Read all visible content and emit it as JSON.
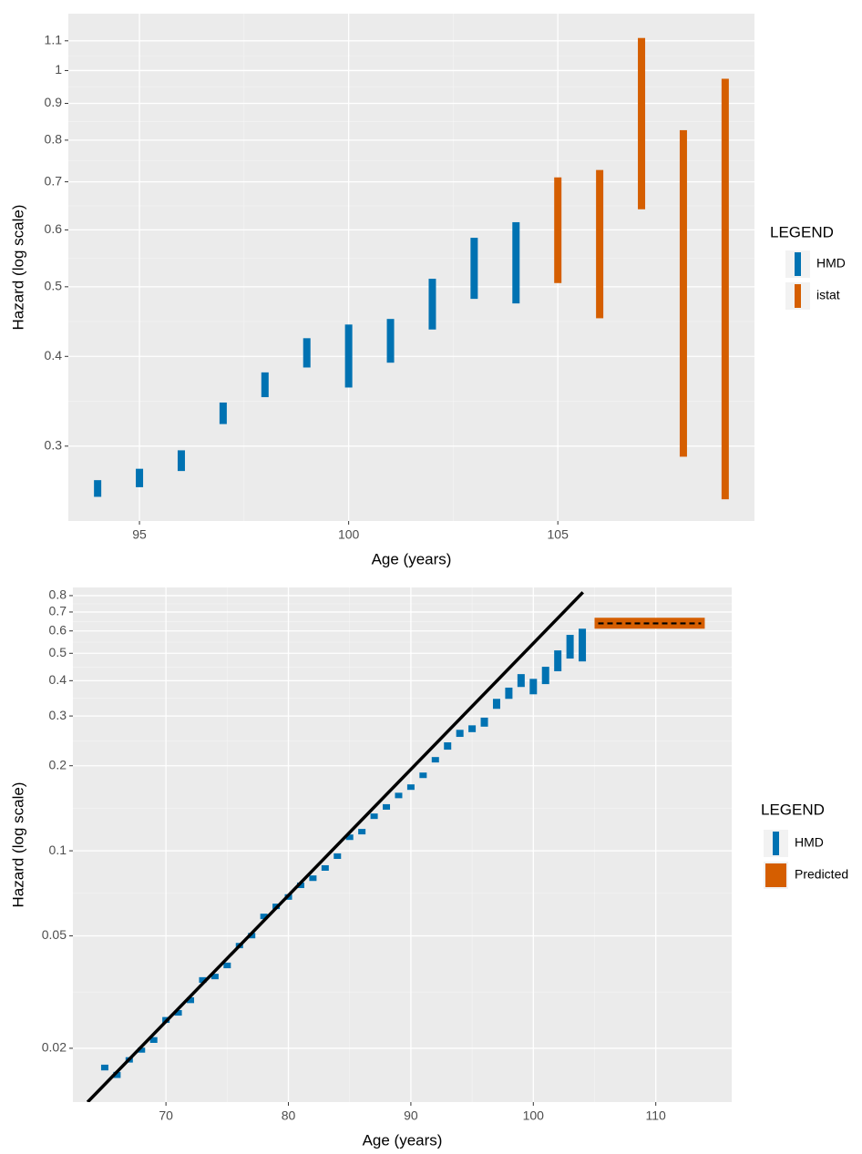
{
  "chart_data": [
    {
      "type": "range",
      "x_label": "Age (years)",
      "y_label": "Hazard (log scale)",
      "log_y": true,
      "grid": true,
      "legend_title": "LEGEND",
      "legend_position": "right",
      "xlim": [
        93.3,
        109.7
      ],
      "ylim": [
        0.236,
        1.2
      ],
      "xticks": [
        95,
        100,
        105
      ],
      "yticks": [
        0.3,
        0.4,
        0.5,
        0.6,
        0.7,
        0.8,
        0.9,
        1,
        1.1
      ],
      "series": [
        {
          "name": "HMD",
          "kind": "range",
          "color": "#0072b2",
          "x": [
            94,
            95,
            96,
            97,
            98,
            99,
            100,
            101,
            102,
            103,
            104
          ],
          "low": [
            0.255,
            0.263,
            0.277,
            0.322,
            0.351,
            0.386,
            0.362,
            0.392,
            0.436,
            0.481,
            0.474
          ],
          "high": [
            0.269,
            0.279,
            0.296,
            0.345,
            0.38,
            0.424,
            0.443,
            0.451,
            0.513,
            0.585,
            0.615
          ]
        },
        {
          "name": "istat",
          "kind": "range",
          "color": "#d55e00",
          "x": [
            105,
            106,
            107,
            108,
            109
          ],
          "low": [
            0.506,
            0.452,
            0.641,
            0.29,
            0.253
          ],
          "high": [
            0.71,
            0.727,
            1.11,
            0.826,
            0.974
          ]
        }
      ]
    },
    {
      "type": "range",
      "x_label": "Age (years)",
      "y_label": "Hazard (log scale)",
      "log_y": true,
      "grid": true,
      "legend_title": "LEGEND",
      "legend_position": "right",
      "xlim": [
        62.4,
        116.2
      ],
      "ylim": [
        0.0129,
        0.855
      ],
      "xticks": [
        70,
        80,
        90,
        100,
        110
      ],
      "yticks": [
        0.02,
        0.05,
        0.1,
        0.2,
        0.3,
        0.4,
        0.5,
        0.6,
        0.7,
        0.8
      ],
      "series": [
        {
          "name": "HMD",
          "kind": "range",
          "color": "#0072b2",
          "x": [
            65,
            66,
            67,
            68,
            69,
            70,
            71,
            72,
            73,
            74,
            75,
            76,
            77,
            78,
            79,
            80,
            81,
            82,
            83,
            84,
            85,
            86,
            87,
            88,
            89,
            90,
            91,
            92,
            93,
            94,
            95,
            96,
            97,
            98,
            99,
            100,
            101,
            102,
            103,
            104
          ],
          "low": [
            0.0167,
            0.0157,
            0.0178,
            0.0193,
            0.0209,
            0.0246,
            0.0261,
            0.0289,
            0.0341,
            0.0351,
            0.0384,
            0.0452,
            0.049,
            0.0573,
            0.0622,
            0.0671,
            0.0738,
            0.0782,
            0.085,
            0.0936,
            0.1092,
            0.1143,
            0.1296,
            0.1398,
            0.1535,
            0.1643,
            0.1809,
            0.2054,
            0.228,
            0.253,
            0.263,
            0.275,
            0.318,
            0.345,
            0.38,
            0.358,
            0.389,
            0.432,
            0.479,
            0.468
          ],
          "high": [
            0.0175,
            0.0165,
            0.0186,
            0.0201,
            0.0219,
            0.0258,
            0.0273,
            0.0303,
            0.0357,
            0.0367,
            0.0402,
            0.0472,
            0.0512,
            0.0599,
            0.065,
            0.0702,
            0.0772,
            0.0818,
            0.0889,
            0.0979,
            0.1142,
            0.1195,
            0.1355,
            0.1462,
            0.1605,
            0.1718,
            0.1892,
            0.2147,
            0.242,
            0.268,
            0.278,
            0.296,
            0.345,
            0.378,
            0.422,
            0.406,
            0.448,
            0.512,
            0.581,
            0.611
          ]
        },
        {
          "name": "Predicted",
          "kind": "band",
          "color": "#d55e00",
          "x": [
            105,
            114
          ],
          "low": 0.611,
          "high": 0.668,
          "value": 0.638,
          "line_color": "#000000",
          "line_style": "dashed"
        }
      ],
      "fit_line": {
        "color": "#000000",
        "x": [
          63.6,
          104.05
        ],
        "values": [
          0.0129,
          0.822
        ]
      }
    }
  ]
}
